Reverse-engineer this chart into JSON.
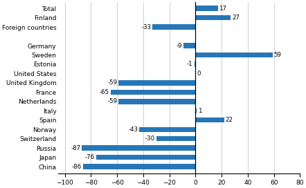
{
  "categories": [
    "China",
    "Japan",
    "Russia",
    "Switzerland",
    "Norway",
    "Spain",
    "Italy",
    "Netherlands",
    "France",
    "United Kingdom",
    "United States",
    "Estonia",
    "Sweden",
    "Germany",
    "",
    "Foreign countries",
    "Finland",
    "Total"
  ],
  "values": [
    -86,
    -76,
    -87,
    -30,
    -43,
    22,
    1,
    -59,
    -65,
    -59,
    0,
    -1,
    59,
    -9,
    null,
    -33,
    27,
    17
  ],
  "bar_color": "#2676B8",
  "xlim": [
    -105,
    80
  ],
  "xticks": [
    -100,
    -80,
    -60,
    -40,
    -20,
    0,
    20,
    40,
    60,
    80
  ],
  "grid_color": "#c8c8c8",
  "label_fontsize": 6.5,
  "value_fontsize": 6.2,
  "bar_height": 0.55
}
